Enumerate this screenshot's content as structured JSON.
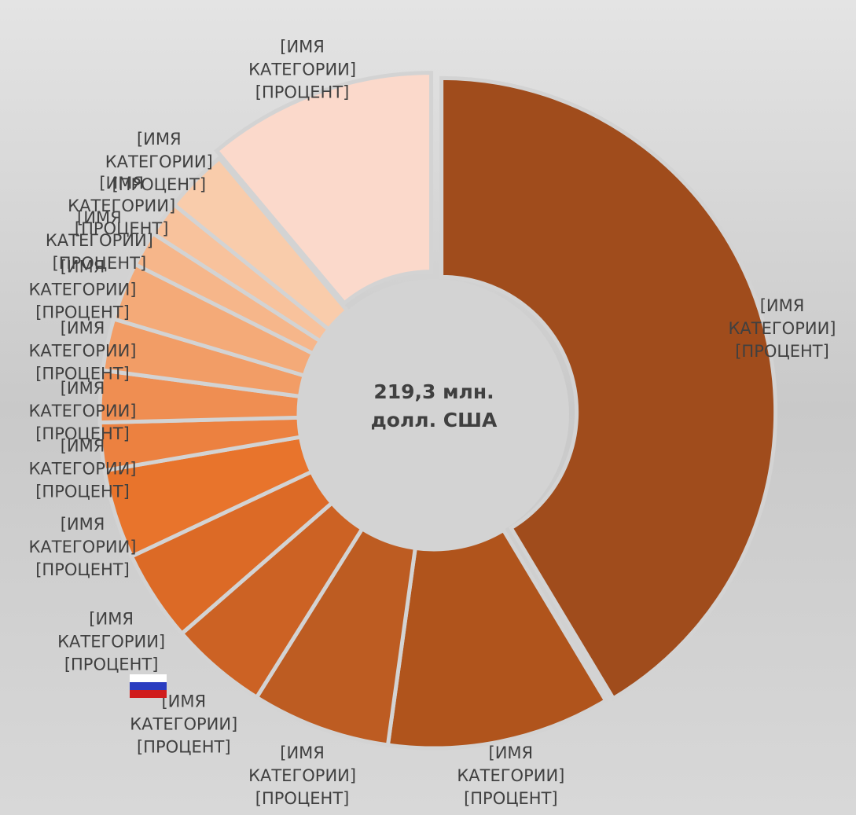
{
  "chart_data": {
    "type": "donut",
    "center_label": "219,3 млн. долл. США",
    "categories": [
      "[ИМЯ КАТЕГОРИИ]",
      "[ИМЯ КАТЕГОРИИ]",
      "[ИМЯ КАТЕГОРИИ]",
      "[ИМЯ КАТЕГОРИИ]",
      "[ИМЯ КАТЕГОРИИ]",
      "[ИМЯ КАТЕГОРИИ]",
      "[ИМЯ КАТЕГОРИИ]",
      "[ИМЯ КАТЕГОРИИ]",
      "[ИМЯ КАТЕГОРИИ]",
      "[ИМЯ КАТЕГОРИИ]",
      "[ИМЯ КАТЕГОРИИ]",
      "[ИМЯ КАТЕГОРИИ]",
      "[ИМЯ КАТЕГОРИИ]",
      "[ИМЯ КАТЕГОРИИ]"
    ],
    "values": [
      41.4,
      10.8,
      6.7,
      4.7,
      4.4,
      4.3,
      2.3,
      2.5,
      2.5,
      2.8,
      1.7,
      1.7,
      3.1,
      11.1
    ],
    "value_labels": [
      "[ПРОЦЕНТ]",
      "[ПРОЦЕНТ]",
      "[ПРОЦЕНТ]",
      "[ПРОЦЕНТ]",
      "[ПРОЦЕНТ]",
      "[ПРОЦЕНТ]",
      "[ПРОЦЕНТ]",
      "[ПРОЦЕНТ]",
      "[ПРОЦЕНТ]",
      "[ПРОЦЕНТ]",
      "[ПРОЦЕНТ]",
      "[ПРОЦЕНТ]",
      "[ПРОЦЕНТ]",
      "[ПРОЦЕНТ]"
    ],
    "colors": [
      "#a04c1c",
      "#b0541c",
      "#bd5c22",
      "#cc6224",
      "#dc6a26",
      "#e8742c",
      "#ec8140",
      "#ef8e52",
      "#f29d66",
      "#f4aa78",
      "#f6b68a",
      "#f8c29c",
      "#f9ccab",
      "#fbd9cb"
    ]
  }
}
